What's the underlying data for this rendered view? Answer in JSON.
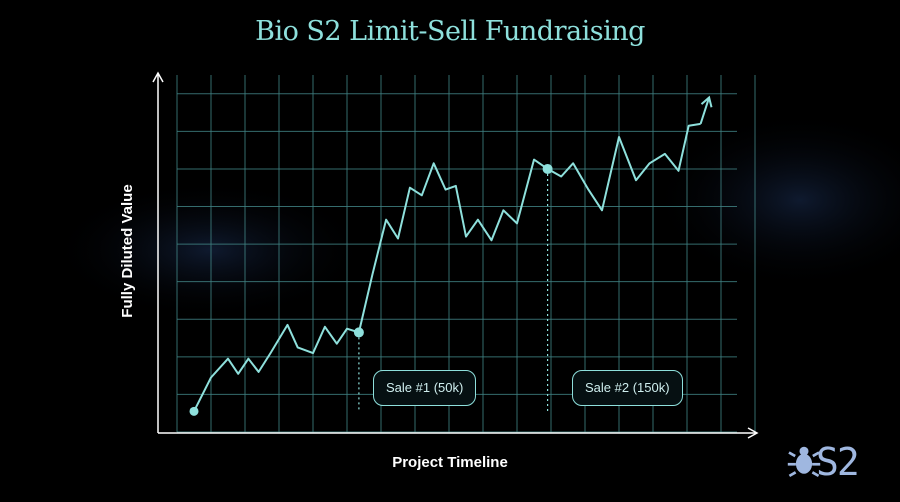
{
  "colors": {
    "background": "#000000",
    "accent": "#8ee0dc",
    "grid": "#3f7f80",
    "axis": "#ffffff",
    "text": "#ffffff",
    "box_text": "#cfeeee",
    "logo": "#9fb7e0"
  },
  "logo": {
    "text": "S2",
    "icon": "bug-icon"
  },
  "chart_data": {
    "type": "line",
    "title": "Bio S2 Limit-Sell Fundraising",
    "xlabel": "Project Timeline",
    "ylabel": "Fully Diluted Value",
    "grid": true,
    "tick_labels": false,
    "xlim": [
      0,
      34
    ],
    "ylim": [
      0,
      19
    ],
    "series": [
      {
        "values_x": [
          1,
          2,
          3,
          3.6,
          4.2,
          4.8,
          5.5,
          6.5,
          7.1,
          8,
          8.7,
          9.4,
          10,
          10.7,
          11.5,
          12.3,
          13,
          13.7,
          14.4,
          15.1,
          15.8,
          16.4,
          17,
          17.7,
          18.5,
          19.2,
          20,
          21,
          21.8,
          22.6,
          23.3,
          24.2,
          25,
          26,
          27,
          27.8,
          28.7,
          29.5,
          30.1,
          30.8
        ],
        "values_y": [
          1.1,
          2.9,
          3.9,
          3.1,
          3.9,
          3.2,
          4.2,
          5.7,
          4.5,
          4.2,
          5.6,
          4.7,
          5.5,
          5.3,
          8.4,
          11.3,
          10.3,
          13,
          12.6,
          14.3,
          12.9,
          13.1,
          10.4,
          11.3,
          10.2,
          11.8,
          11.1,
          14.5,
          14,
          13.6,
          14.3,
          12.9,
          11.8,
          15.7,
          13.4,
          14.3,
          14.8,
          13.9,
          16.3,
          16.4
        ]
      }
    ],
    "start_point": {
      "x": 1,
      "y": 1.1
    },
    "end_arrow": {
      "x": 31.3,
      "y": 17.8
    },
    "annotations": [
      {
        "label": "Sale #1 (50k)",
        "x": 10.7,
        "y": 5.3
      },
      {
        "label": "Sale #2 (150k)",
        "x": 21.8,
        "y": 14
      }
    ]
  }
}
